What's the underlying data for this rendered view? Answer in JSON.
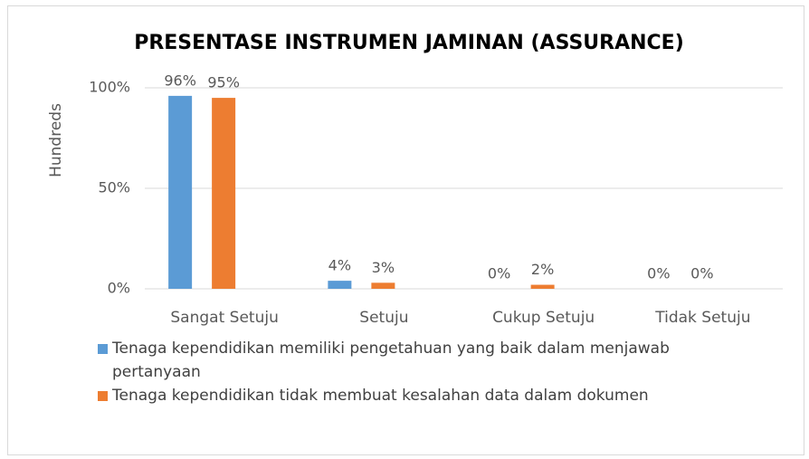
{
  "chart_data": {
    "type": "bar",
    "title": "PRESENTASE INSTRUMEN JAMINAN (ASSURANCE)",
    "y_label": "Hundreds",
    "categories": [
      "Sangat Setuju",
      "Setuju",
      "Cukup Setuju",
      "Tidak Setuju"
    ],
    "series": [
      {
        "name": "Tenaga kependidikan memiliki pengetahuan yang baik dalam menjawab pertanyaan",
        "color": "#5b9bd5",
        "values": [
          96,
          4,
          0,
          0
        ],
        "value_labels": [
          "96%",
          "4%",
          "0%",
          "0%"
        ]
      },
      {
        "name": "Tenaga kependidikan tidak membuat kesalahan data dalam dokumen",
        "color": "#ed7d31",
        "values": [
          95,
          3,
          2,
          0
        ],
        "value_labels": [
          "95%",
          "3%",
          "2%",
          "0%"
        ]
      }
    ],
    "ylim": [
      0,
      100
    ],
    "yticks": [
      {
        "value": 0,
        "label": "0%"
      },
      {
        "value": 50,
        "label": "50%"
      },
      {
        "value": 100,
        "label": "100%"
      }
    ],
    "grid": true
  }
}
